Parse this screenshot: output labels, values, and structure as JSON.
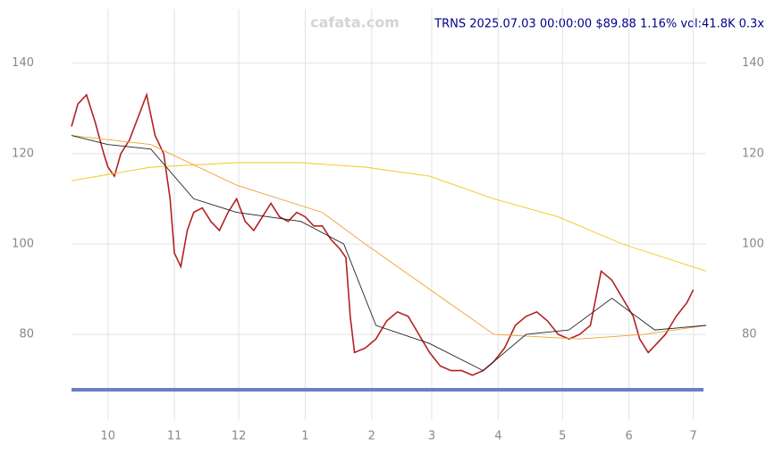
{
  "chart_data": {
    "type": "line",
    "title": "TRNS 2025.07.03 00:00:00 $89.88 1.16% vol:41.8K 0.3x",
    "watermark": "cafata.com",
    "xlim": [
      -17,
      279
    ],
    "ylim": [
      65,
      152
    ],
    "xticks": [
      {
        "value": 0,
        "label": "10"
      },
      {
        "value": 31,
        "label": "11"
      },
      {
        "value": 61,
        "label": "12"
      },
      {
        "value": 92,
        "label": "1"
      },
      {
        "value": 123,
        "label": "2"
      },
      {
        "value": 151,
        "label": "3"
      },
      {
        "value": 182,
        "label": "4"
      },
      {
        "value": 212,
        "label": "5"
      },
      {
        "value": 243,
        "label": "6"
      },
      {
        "value": 273,
        "label": "7"
      }
    ],
    "yticks": [
      80,
      100,
      120,
      140
    ],
    "grid": true,
    "series": [
      {
        "color": "#b22222",
        "x": [
          -17,
          -14,
          -10,
          -6,
          -2,
          0,
          3,
          6,
          10,
          14,
          18,
          22,
          26,
          29,
          31,
          34,
          37,
          40,
          44,
          48,
          52,
          56,
          60,
          64,
          68,
          72,
          76,
          80,
          84,
          88,
          92,
          96,
          100,
          104,
          108,
          111,
          113,
          115,
          120,
          125,
          130,
          135,
          140,
          145,
          150,
          155,
          160,
          165,
          170,
          175,
          180,
          185,
          190,
          195,
          200,
          205,
          210,
          215,
          220,
          225,
          230,
          235,
          240,
          245,
          248,
          252,
          256,
          260,
          265,
          270,
          273
        ],
        "values": [
          126,
          131,
          133,
          127,
          120,
          117,
          115,
          120,
          123,
          128,
          133,
          124,
          120,
          110,
          98,
          95,
          103,
          107,
          108,
          105,
          103,
          107,
          110,
          105,
          103,
          106,
          109,
          106,
          105,
          107,
          106,
          104,
          104,
          101,
          99,
          97,
          84,
          76,
          77,
          79,
          83,
          85,
          84,
          80,
          76,
          73,
          72,
          72,
          71,
          72,
          74,
          77,
          82,
          84,
          85,
          83,
          80,
          79,
          80,
          82,
          94,
          92,
          88,
          84,
          79,
          76,
          78,
          80,
          84,
          87,
          89.88
        ]
      },
      {
        "color": "#f5c518",
        "x": [
          -17,
          20,
          60,
          90,
          120,
          150,
          180,
          210,
          240,
          279
        ],
        "values": [
          114,
          117,
          118,
          118,
          117,
          115,
          110,
          106,
          100,
          94
        ]
      },
      {
        "color": "#f0a030",
        "x": [
          -17,
          20,
          60,
          100,
          120,
          150,
          180,
          220,
          250,
          279
        ],
        "values": [
          124,
          122,
          113,
          107,
          100,
          90,
          80,
          79,
          80,
          82
        ]
      },
      {
        "color": "#222222",
        "x": [
          -17,
          0,
          20,
          40,
          60,
          90,
          110,
          125,
          150,
          175,
          195,
          215,
          235,
          255,
          279
        ],
        "values": [
          124,
          122,
          121,
          110,
          107,
          105,
          100,
          82,
          78,
          72,
          80,
          81,
          88,
          81,
          82
        ]
      }
    ]
  }
}
